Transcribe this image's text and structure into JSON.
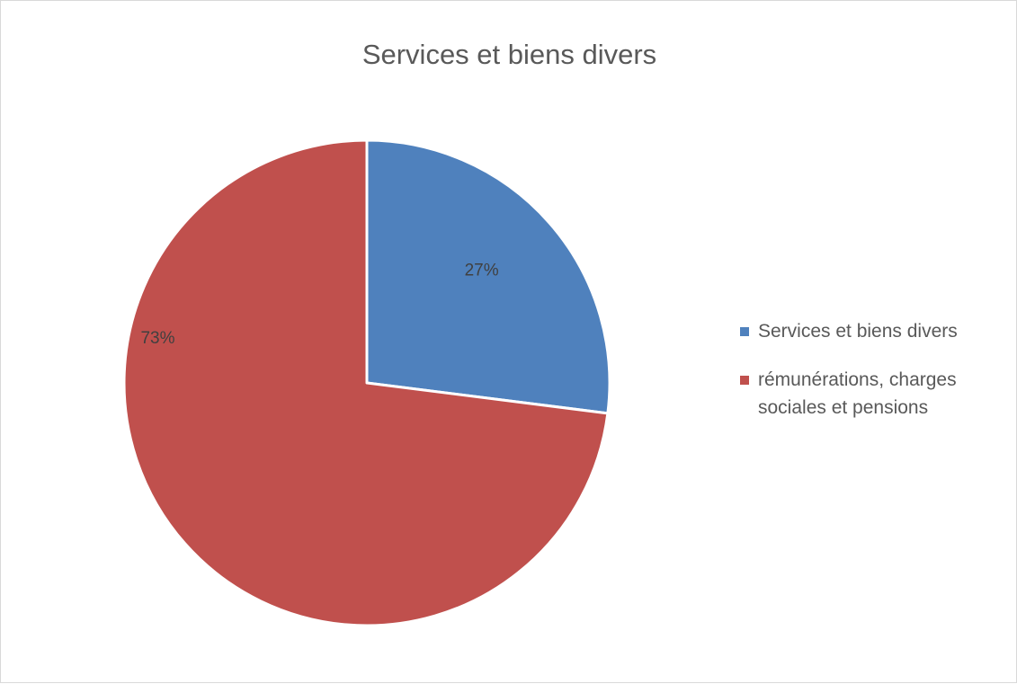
{
  "chart_data": {
    "type": "pie",
    "title": "Services et biens divers",
    "categories": [
      "Services et biens divers",
      "rémunérations, charges sociales et pensions"
    ],
    "values": [
      27,
      73
    ],
    "value_labels": [
      "27%",
      "73%"
    ],
    "colors": [
      "#4f81bd",
      "#c0504d"
    ],
    "legend_position": "right"
  }
}
